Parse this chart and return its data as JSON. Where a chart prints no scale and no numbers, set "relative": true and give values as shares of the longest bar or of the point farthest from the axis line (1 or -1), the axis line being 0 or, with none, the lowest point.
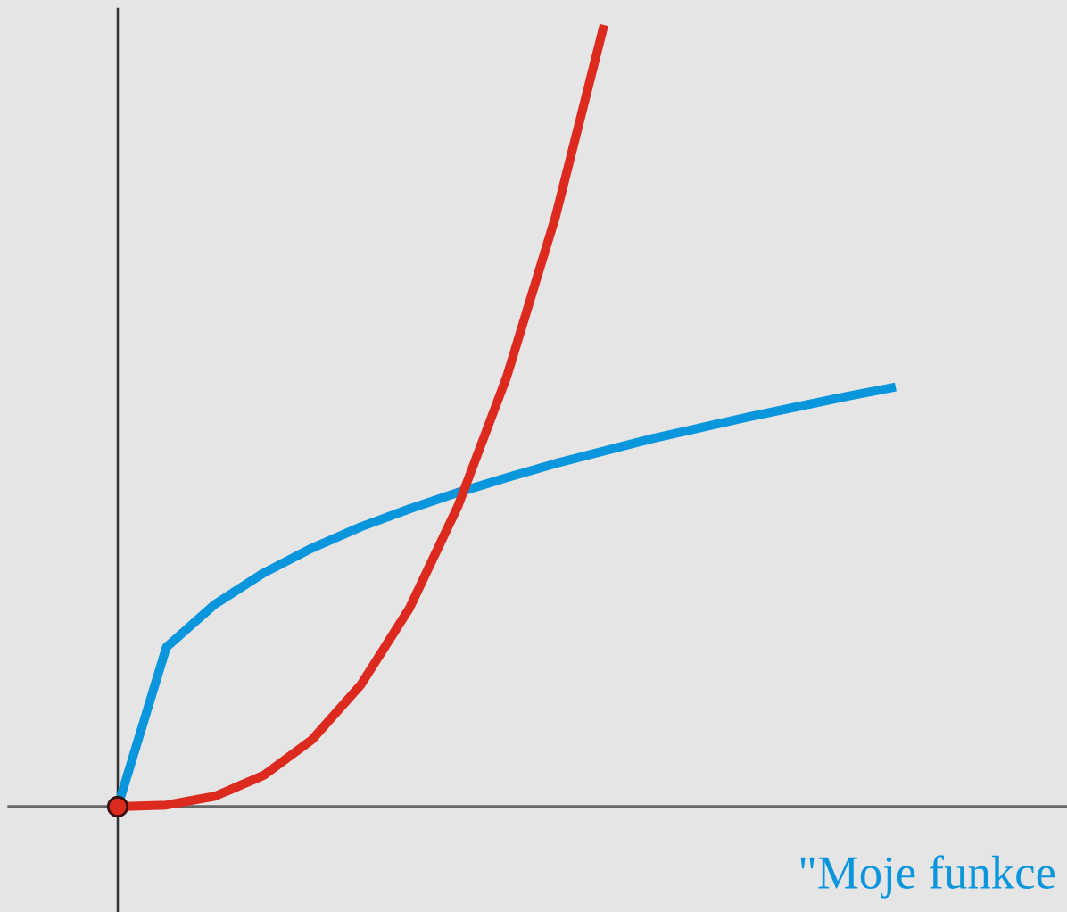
{
  "chart_data": {
    "type": "line",
    "relative": true,
    "categories": [
      null,
      null,
      null,
      null,
      null,
      null,
      null,
      null,
      null,
      null,
      null,
      null,
      null,
      null,
      null,
      null,
      null
    ],
    "series": [
      {
        "color": "#0a96dc",
        "values": [
          0,
          0.204,
          0.259,
          0.299,
          0.331,
          0.358,
          0.381,
          0.402,
          0.421,
          0.439,
          0.455,
          0.471,
          0.485,
          0.499,
          0.512,
          0.525,
          0.537
        ]
      },
      {
        "color": "#dc2a1e",
        "values": [
          0,
          0.0021,
          0.0134,
          0.04,
          0.086,
          0.156,
          0.254,
          0.385,
          0.55,
          0.754,
          1,
          null,
          null,
          null,
          null,
          null,
          null
        ]
      }
    ],
    "annotations": [
      "\"Moje funkce"
    ]
  }
}
